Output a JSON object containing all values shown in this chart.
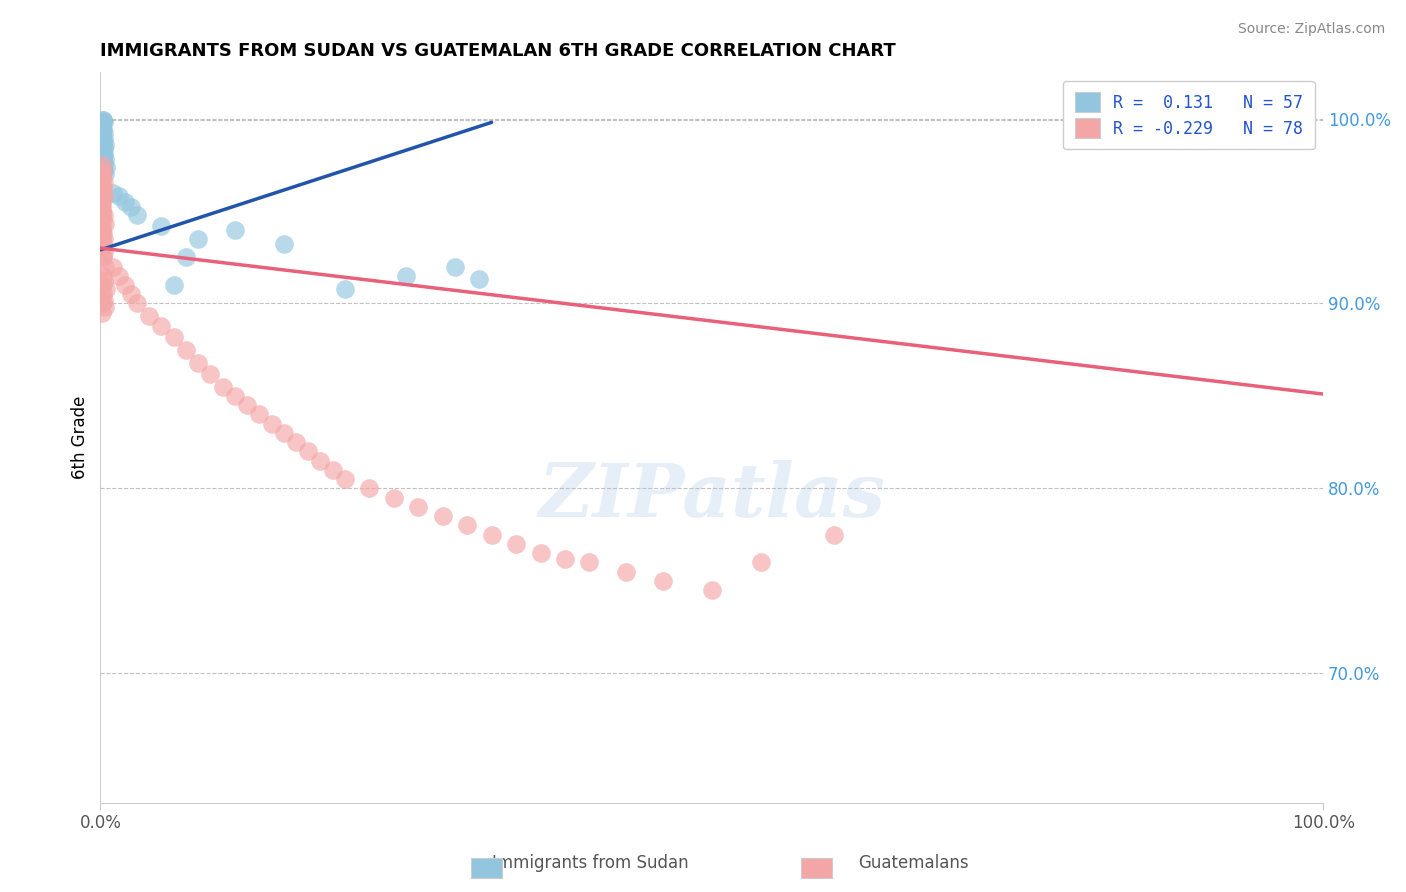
{
  "title": "IMMIGRANTS FROM SUDAN VS GUATEMALAN 6TH GRADE CORRELATION CHART",
  "source": "Source: ZipAtlas.com",
  "ylabel": "6th Grade",
  "yaxis_labels": [
    "100.0%",
    "90.0%",
    "80.0%",
    "70.0%"
  ],
  "yaxis_values": [
    1.0,
    0.9,
    0.8,
    0.7
  ],
  "ylim": [
    0.63,
    1.025
  ],
  "xlim": [
    0.0,
    1.0
  ],
  "blue_color": "#92C5DE",
  "pink_color": "#F4A6A6",
  "blue_line_color": "#2255AA",
  "pink_line_color": "#E8607A",
  "legend_blue_label": "Immigrants from Sudan",
  "legend_pink_label": "Guatemalans",
  "R_blue": 0.131,
  "N_blue": 57,
  "R_pink": -0.229,
  "N_pink": 78,
  "blue_line_x0": 0.0,
  "blue_line_x1": 0.32,
  "blue_line_y0": 0.929,
  "blue_line_y1": 0.998,
  "pink_line_x0": 0.0,
  "pink_line_x1": 1.0,
  "pink_line_y0": 0.93,
  "pink_line_y1": 0.851,
  "dashed_line_y": 0.999,
  "blue_x": [
    0.001,
    0.002,
    0.001,
    0.003,
    0.001,
    0.002,
    0.001,
    0.003,
    0.001,
    0.002,
    0.001,
    0.003,
    0.001,
    0.002,
    0.001,
    0.004,
    0.002,
    0.001,
    0.003,
    0.001,
    0.002,
    0.001,
    0.003,
    0.002,
    0.001,
    0.004,
    0.001,
    0.002,
    0.003,
    0.001,
    0.002,
    0.001,
    0.005,
    0.002,
    0.001,
    0.003,
    0.002,
    0.001,
    0.004,
    0.002,
    0.001,
    0.01,
    0.015,
    0.02,
    0.025,
    0.03,
    0.05,
    0.06,
    0.07,
    0.08,
    0.11,
    0.15,
    0.2,
    0.25,
    0.29,
    0.31,
    0.9
  ],
  "blue_y": [
    0.996,
    0.999,
    0.997,
    0.998,
    0.995,
    0.994,
    0.993,
    0.992,
    0.991,
    0.998,
    0.99,
    0.989,
    0.988,
    0.999,
    0.987,
    0.986,
    0.985,
    0.996,
    0.984,
    0.983,
    0.982,
    0.997,
    0.981,
    0.98,
    0.979,
    0.978,
    0.994,
    0.977,
    0.976,
    0.992,
    0.975,
    0.991,
    0.974,
    0.973,
    0.99,
    0.972,
    0.971,
    0.989,
    0.97,
    0.988,
    0.969,
    0.96,
    0.958,
    0.955,
    0.952,
    0.948,
    0.942,
    0.91,
    0.925,
    0.935,
    0.94,
    0.932,
    0.908,
    0.915,
    0.92,
    0.913,
    0.995
  ],
  "pink_x": [
    0.001,
    0.002,
    0.001,
    0.003,
    0.001,
    0.002,
    0.001,
    0.003,
    0.001,
    0.002,
    0.001,
    0.003,
    0.001,
    0.002,
    0.001,
    0.004,
    0.002,
    0.001,
    0.003,
    0.001,
    0.002,
    0.001,
    0.003,
    0.002,
    0.001,
    0.004,
    0.001,
    0.002,
    0.003,
    0.001,
    0.002,
    0.001,
    0.005,
    0.002,
    0.001,
    0.003,
    0.002,
    0.001,
    0.004,
    0.002,
    0.001,
    0.01,
    0.015,
    0.02,
    0.025,
    0.03,
    0.04,
    0.05,
    0.06,
    0.07,
    0.08,
    0.09,
    0.1,
    0.11,
    0.12,
    0.13,
    0.14,
    0.15,
    0.16,
    0.17,
    0.18,
    0.19,
    0.2,
    0.22,
    0.24,
    0.26,
    0.28,
    0.3,
    0.32,
    0.34,
    0.36,
    0.38,
    0.4,
    0.43,
    0.46,
    0.5,
    0.54,
    0.6
  ],
  "pink_y": [
    0.968,
    0.972,
    0.97,
    0.965,
    0.975,
    0.96,
    0.962,
    0.958,
    0.955,
    0.963,
    0.952,
    0.948,
    0.95,
    0.945,
    0.94,
    0.943,
    0.938,
    0.965,
    0.935,
    0.96,
    0.932,
    0.955,
    0.928,
    0.925,
    0.95,
    0.92,
    0.948,
    0.915,
    0.912,
    0.942,
    0.91,
    0.938,
    0.908,
    0.905,
    0.935,
    0.902,
    0.9,
    0.93,
    0.898,
    0.925,
    0.895,
    0.92,
    0.915,
    0.91,
    0.905,
    0.9,
    0.893,
    0.888,
    0.882,
    0.875,
    0.868,
    0.862,
    0.855,
    0.85,
    0.845,
    0.84,
    0.835,
    0.83,
    0.825,
    0.82,
    0.815,
    0.81,
    0.805,
    0.8,
    0.795,
    0.79,
    0.785,
    0.78,
    0.775,
    0.77,
    0.765,
    0.762,
    0.76,
    0.755,
    0.75,
    0.745,
    0.76,
    0.775
  ]
}
